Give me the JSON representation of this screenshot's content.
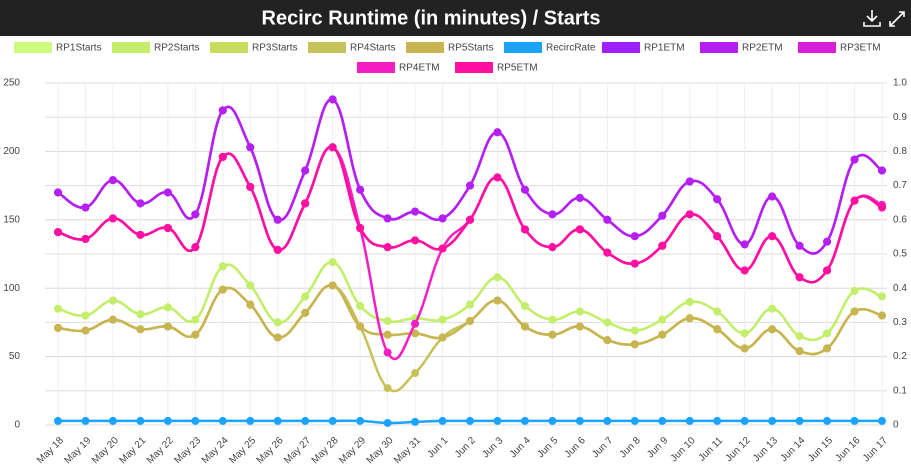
{
  "chart_data": {
    "type": "line",
    "title": "Recirc Runtime (in minutes) / Starts",
    "categories": [
      "May 18",
      "May 19",
      "May 20",
      "May 21",
      "May 22",
      "May 23",
      "May 24",
      "May 25",
      "May 26",
      "May 27",
      "May 28",
      "May 29",
      "May 30",
      "May 31",
      "Jun 1",
      "Jun 2",
      "Jun 3",
      "Jun 4",
      "Jun 5",
      "Jun 6",
      "Jun 7",
      "Jun 8",
      "Jun 9",
      "Jun 10",
      "Jun 11",
      "Jun 12",
      "Jun 13",
      "Jun 14",
      "Jun 15",
      "Jun 16",
      "Jun 17"
    ],
    "ylim": [
      0,
      250
    ],
    "yticks": [
      0,
      50,
      100,
      150,
      200,
      250
    ],
    "y2lim": [
      0,
      1
    ],
    "y2ticks": [
      0,
      0.1,
      0.2,
      0.3,
      0.4,
      0.5,
      0.6,
      0.7,
      0.8,
      0.9,
      {
        "value": 1,
        "label": "1.0"
      }
    ],
    "grid": true,
    "series": [
      {
        "name": "RP1Starts",
        "color": "#cdfa7e",
        "values": [
          85,
          80,
          91,
          81,
          86,
          77,
          116,
          102,
          75,
          94,
          119,
          87,
          76,
          78,
          77,
          88,
          108,
          87,
          77,
          83,
          75,
          69,
          77,
          90,
          83,
          67,
          85,
          65,
          67,
          98,
          94
        ]
      },
      {
        "name": "RP2Starts",
        "color": "#c2ee6c",
        "values": [
          85,
          80,
          91,
          81,
          86,
          77,
          116,
          102,
          75,
          94,
          119,
          87,
          76,
          78,
          77,
          88,
          108,
          87,
          77,
          83,
          75,
          69,
          77,
          90,
          83,
          67,
          85,
          65,
          67,
          98,
          94
        ]
      },
      {
        "name": "RP3Starts",
        "color": "#c8dc5e",
        "values": [
          71,
          69,
          77,
          70,
          72,
          66,
          99,
          88,
          64,
          82,
          102,
          72,
          66,
          67,
          64,
          76,
          91,
          72,
          66,
          72,
          62,
          59,
          66,
          78,
          70,
          56,
          70,
          54,
          56,
          83,
          80
        ]
      },
      {
        "name": "RP4Starts",
        "color": "#c6c25a",
        "values": [
          71,
          69,
          77,
          70,
          72,
          66,
          99,
          88,
          64,
          82,
          102,
          72,
          27,
          38,
          64,
          76,
          91,
          72,
          66,
          72,
          62,
          59,
          66,
          78,
          70,
          56,
          70,
          54,
          56,
          83,
          80
        ]
      },
      {
        "name": "RP5Starts",
        "color": "#c8b450",
        "values": [
          71,
          69,
          77,
          70,
          72,
          66,
          99,
          88,
          64,
          82,
          102,
          72,
          66,
          67,
          64,
          76,
          91,
          72,
          66,
          72,
          62,
          59,
          66,
          78,
          70,
          56,
          70,
          54,
          56,
          83,
          80
        ]
      },
      {
        "name": "RecircRate",
        "color": "#1aa3ff",
        "axis": "y2",
        "values": [
          0.012,
          0.012,
          0.012,
          0.012,
          0.012,
          0.012,
          0.012,
          0.012,
          0.012,
          0.012,
          0.012,
          0.012,
          0.006,
          0.009,
          0.012,
          0.012,
          0.012,
          0.012,
          0.012,
          0.012,
          0.012,
          0.012,
          0.012,
          0.012,
          0.012,
          0.012,
          0.012,
          0.012,
          0.012,
          0.012,
          0.012
        ]
      },
      {
        "name": "RP1ETM",
        "color": "#a01fff",
        "values": [
          170,
          159,
          179,
          162,
          170,
          154,
          230,
          203,
          150,
          186,
          238,
          172,
          151,
          156,
          151,
          175,
          214,
          172,
          154,
          166,
          150,
          138,
          153,
          178,
          165,
          132,
          167,
          131,
          134,
          194,
          186
        ]
      },
      {
        "name": "RP2ETM",
        "color": "#b61ff2",
        "values": [
          170,
          159,
          179,
          162,
          170,
          154,
          230,
          203,
          150,
          186,
          238,
          172,
          151,
          156,
          151,
          175,
          214,
          172,
          154,
          166,
          150,
          138,
          153,
          178,
          165,
          132,
          167,
          131,
          134,
          194,
          186
        ]
      },
      {
        "name": "RP3ETM",
        "color": "#d81ed8",
        "values": [
          141,
          136,
          151,
          139,
          144,
          130,
          196,
          174,
          128,
          162,
          203,
          144,
          130,
          135,
          129,
          150,
          181,
          143,
          130,
          143,
          126,
          118,
          131,
          154,
          138,
          113,
          138,
          108,
          113,
          164,
          159
        ]
      },
      {
        "name": "RP4ETM",
        "color": "#f51ec4",
        "values": [
          141,
          136,
          151,
          139,
          144,
          130,
          196,
          174,
          128,
          162,
          203,
          144,
          53,
          74,
          129,
          150,
          181,
          143,
          130,
          143,
          126,
          118,
          131,
          154,
          138,
          113,
          138,
          108,
          113,
          164,
          161
        ]
      },
      {
        "name": "RP5ETM",
        "color": "#ff10a0",
        "values": [
          141,
          136,
          151,
          139,
          144,
          130,
          196,
          174,
          128,
          162,
          203,
          144,
          130,
          135,
          129,
          150,
          181,
          143,
          130,
          143,
          126,
          118,
          131,
          154,
          138,
          113,
          138,
          108,
          113,
          164,
          159
        ]
      }
    ]
  }
}
